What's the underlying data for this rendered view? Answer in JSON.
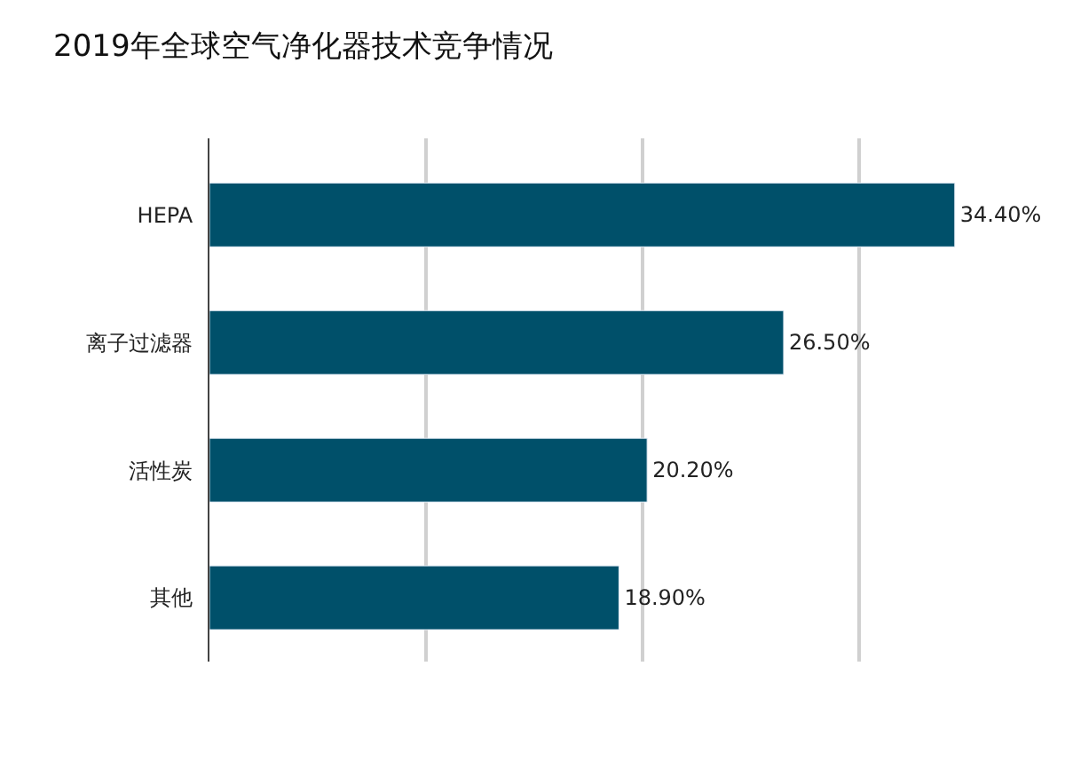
{
  "chart_data": {
    "type": "bar",
    "orientation": "horizontal",
    "title": "2019年全球空气净化器技术竞争情况",
    "categories": [
      "HEPA",
      "离子过滤器",
      "活性炭",
      "其他"
    ],
    "values": [
      34.4,
      26.5,
      20.2,
      18.9
    ],
    "value_labels": [
      "34.40%",
      "26.50%",
      "20.20%",
      "18.90%"
    ],
    "color": "#00506a",
    "grid": "x",
    "tick_labels": "y",
    "legend": false
  }
}
